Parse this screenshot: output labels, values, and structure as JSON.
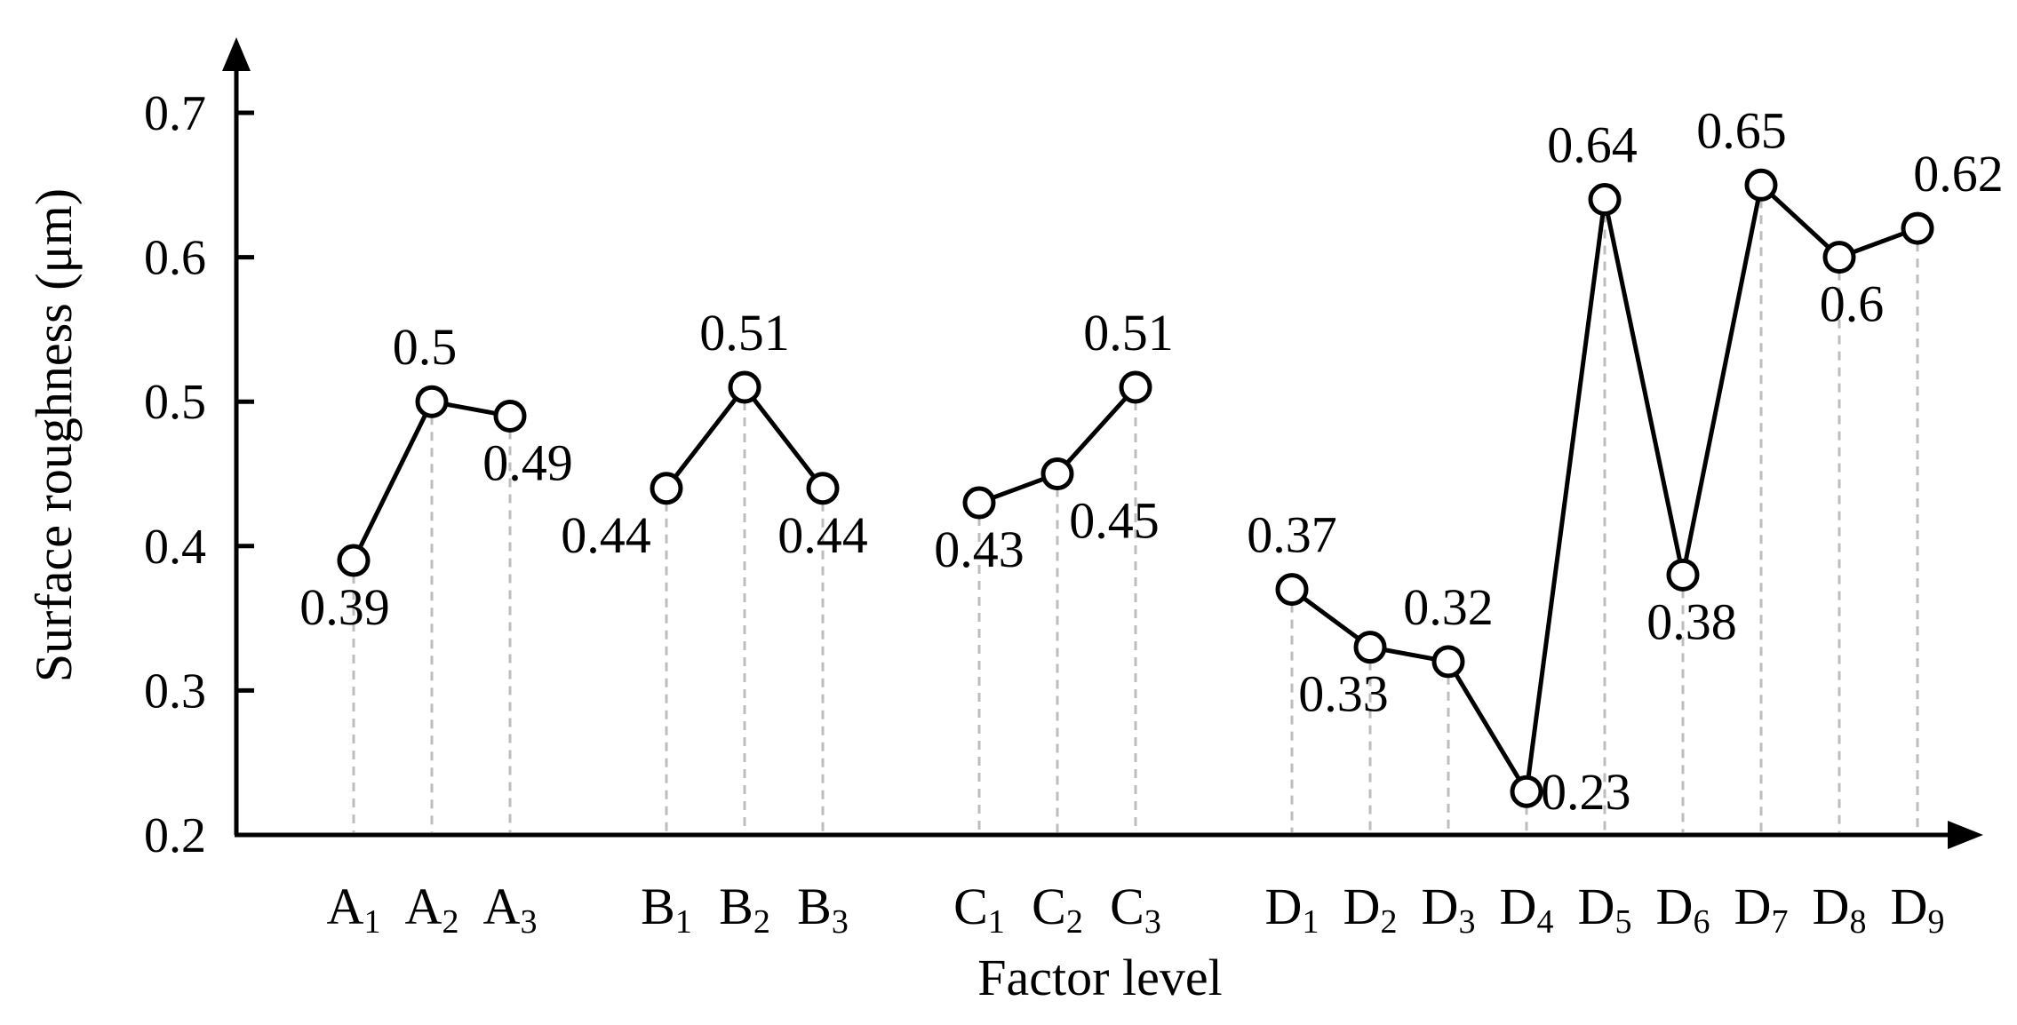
{
  "chart_data": {
    "type": "line",
    "title": "",
    "xlabel": "Factor level",
    "ylabel": "Surface roughness (μm)",
    "ylim": [
      0.2,
      0.7
    ],
    "yticks": [
      "0.2",
      "0.3",
      "0.4",
      "0.5",
      "0.6",
      "0.7"
    ],
    "grid": false,
    "legend": "none",
    "groups": [
      {
        "factor": "A",
        "levels": [
          {
            "letter": "A",
            "sub": "1",
            "value": 0.39,
            "label": "0.39"
          },
          {
            "letter": "A",
            "sub": "2",
            "value": 0.5,
            "label": "0.5"
          },
          {
            "letter": "A",
            "sub": "3",
            "value": 0.49,
            "label": "0.49"
          }
        ]
      },
      {
        "factor": "B",
        "levels": [
          {
            "letter": "B",
            "sub": "1",
            "value": 0.44,
            "label": "0.44"
          },
          {
            "letter": "B",
            "sub": "2",
            "value": 0.51,
            "label": "0.51"
          },
          {
            "letter": "B",
            "sub": "3",
            "value": 0.44,
            "label": "0.44"
          }
        ]
      },
      {
        "factor": "C",
        "levels": [
          {
            "letter": "C",
            "sub": "1",
            "value": 0.43,
            "label": "0.43"
          },
          {
            "letter": "C",
            "sub": "2",
            "value": 0.45,
            "label": "0.45"
          },
          {
            "letter": "C",
            "sub": "3",
            "value": 0.51,
            "label": "0.51"
          }
        ]
      },
      {
        "factor": "D",
        "levels": [
          {
            "letter": "D",
            "sub": "1",
            "value": 0.37,
            "label": "0.37"
          },
          {
            "letter": "D",
            "sub": "2",
            "value": 0.33,
            "label": "0.33"
          },
          {
            "letter": "D",
            "sub": "3",
            "value": 0.32,
            "label": "0.32"
          },
          {
            "letter": "D",
            "sub": "4",
            "value": 0.23,
            "label": "0.23"
          },
          {
            "letter": "D",
            "sub": "5",
            "value": 0.64,
            "label": "0.64"
          },
          {
            "letter": "D",
            "sub": "6",
            "value": 0.38,
            "label": "0.38"
          },
          {
            "letter": "D",
            "sub": "7",
            "value": 0.65,
            "label": "0.65"
          },
          {
            "letter": "D",
            "sub": "8",
            "value": 0.6,
            "label": "0.6"
          },
          {
            "letter": "D",
            "sub": "9",
            "value": 0.62,
            "label": "0.62"
          }
        ]
      }
    ]
  }
}
